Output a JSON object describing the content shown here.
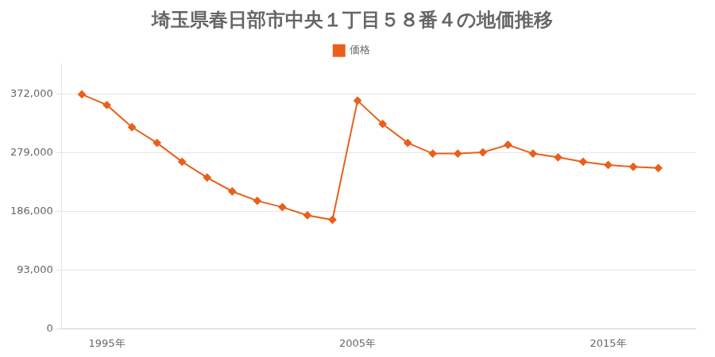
{
  "chart_data": {
    "type": "line",
    "title": "埼玉県春日部市中央１丁目５８番４の地価推移",
    "x": [
      1994,
      1995,
      1996,
      1997,
      1998,
      1999,
      2000,
      2001,
      2002,
      2003,
      2004,
      2005,
      2006,
      2007,
      2008,
      2009,
      2010,
      2011,
      2012,
      2013,
      2014,
      2015,
      2016,
      2017
    ],
    "series": [
      {
        "name": "価格",
        "color": "#E8601C",
        "marker": "diamond",
        "values": [
          372000,
          355000,
          320000,
          295000,
          265000,
          240000,
          218000,
          203000,
          193000,
          180000,
          173000,
          362000,
          325000,
          295000,
          278000,
          278000,
          280000,
          292000,
          278000,
          272000,
          265000,
          260000,
          257000,
          255000
        ]
      }
    ],
    "xlim": [
      1993.2,
      2018.5
    ],
    "xticks": [
      {
        "value": 1995,
        "label": "1995年"
      },
      {
        "value": 2005,
        "label": "2005年"
      },
      {
        "value": 2015,
        "label": "2015年"
      }
    ],
    "ylim": [
      0,
      420000
    ],
    "yticks": [
      0,
      {
        "value": 93000,
        "label": "93,000"
      },
      {
        "value": 186000,
        "label": "186,000"
      },
      {
        "value": 279000,
        "label": "279,000"
      },
      {
        "value": 372000,
        "label": "372,000"
      }
    ],
    "grid": "y",
    "legend": "top"
  }
}
